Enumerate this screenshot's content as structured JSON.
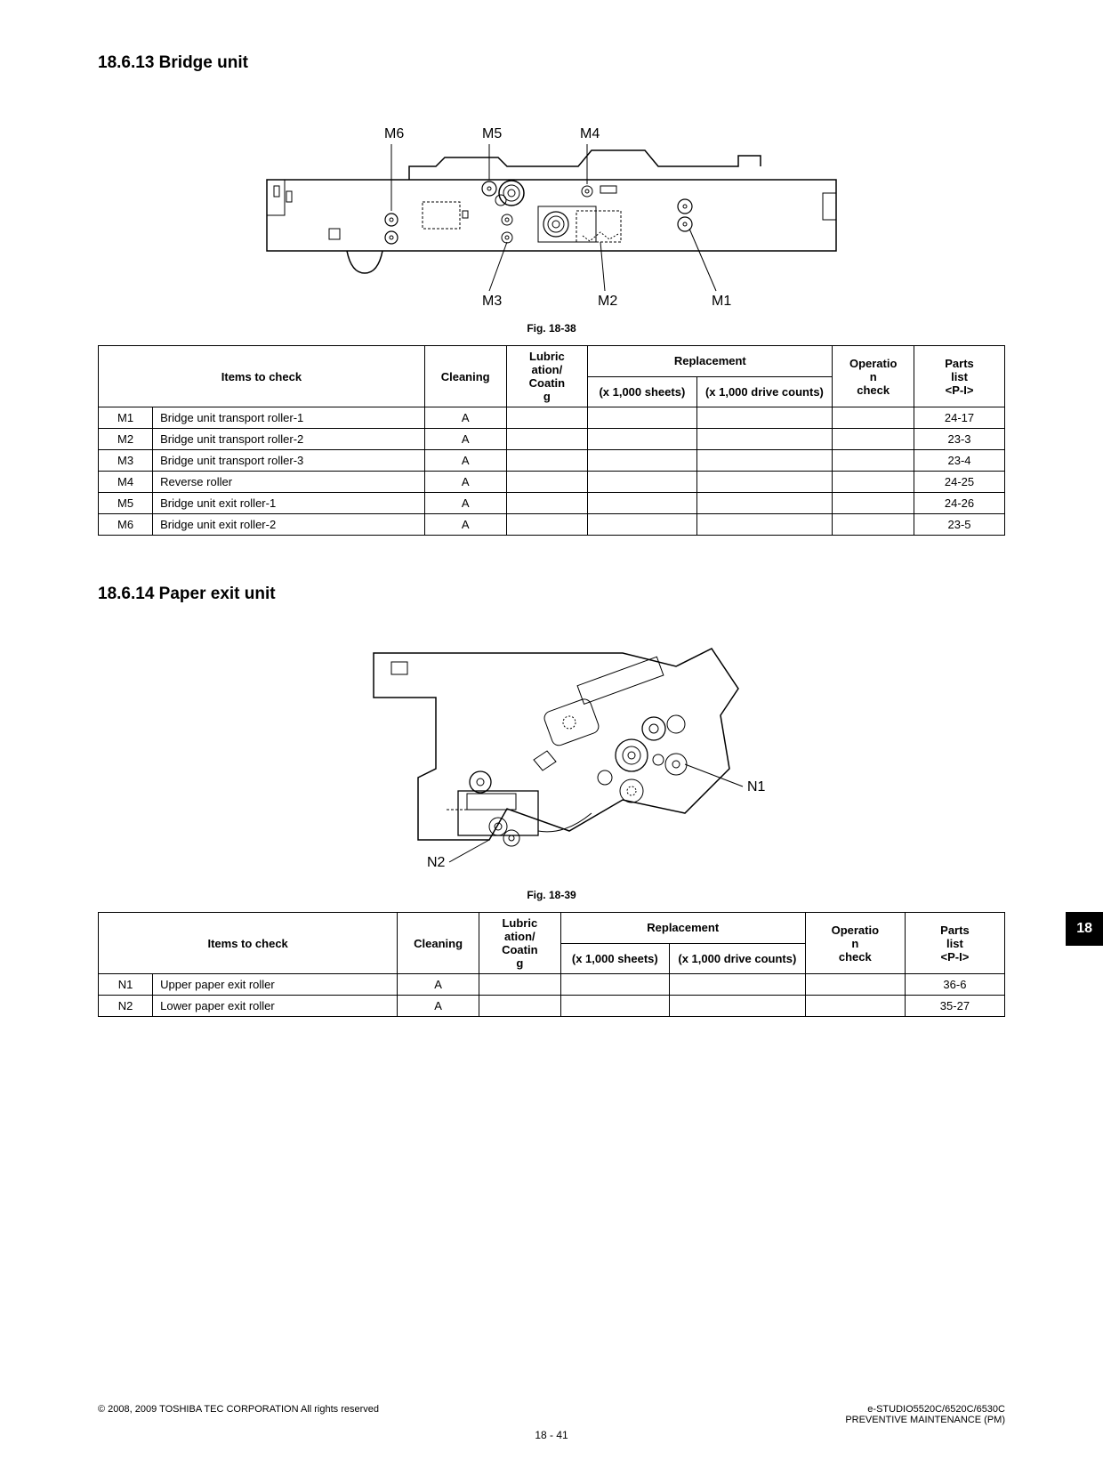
{
  "section1": {
    "heading": "18.6.13  Bridge unit",
    "figure_caption": "Fig. 18-38",
    "diagram": {
      "labels": [
        "M6",
        "M5",
        "M4",
        "M3",
        "M2",
        "M1"
      ]
    },
    "table": {
      "headers": {
        "items": "Items to check",
        "cleaning": "Cleaning",
        "lubric": "Lubrication/Coating",
        "replacement": "Replacement",
        "rep_sheets": "(x 1,000 sheets)",
        "rep_drive": "(x 1,000 drive counts)",
        "operation": "Operation check",
        "parts": "Parts list <P-I>"
      },
      "rows": [
        {
          "id": "M1",
          "item": "Bridge unit transport roller-1",
          "cleaning": "A",
          "lubric": "",
          "rep_sheets": "",
          "rep_drive": "",
          "op": "",
          "parts": "24-17"
        },
        {
          "id": "M2",
          "item": "Bridge unit transport roller-2",
          "cleaning": "A",
          "lubric": "",
          "rep_sheets": "",
          "rep_drive": "",
          "op": "",
          "parts": "23-3"
        },
        {
          "id": "M3",
          "item": "Bridge unit transport roller-3",
          "cleaning": "A",
          "lubric": "",
          "rep_sheets": "",
          "rep_drive": "",
          "op": "",
          "parts": "23-4"
        },
        {
          "id": "M4",
          "item": "Reverse roller",
          "cleaning": "A",
          "lubric": "",
          "rep_sheets": "",
          "rep_drive": "",
          "op": "",
          "parts": "24-25"
        },
        {
          "id": "M5",
          "item": "Bridge unit exit roller-1",
          "cleaning": "A",
          "lubric": "",
          "rep_sheets": "",
          "rep_drive": "",
          "op": "",
          "parts": "24-26"
        },
        {
          "id": "M6",
          "item": "Bridge unit exit roller-2",
          "cleaning": "A",
          "lubric": "",
          "rep_sheets": "",
          "rep_drive": "",
          "op": "",
          "parts": "23-5"
        }
      ]
    }
  },
  "section2": {
    "heading": "18.6.14  Paper exit unit",
    "figure_caption": "Fig. 18-39",
    "diagram": {
      "labels": [
        "N1",
        "N2"
      ]
    },
    "table": {
      "headers": {
        "items": "Items to check",
        "cleaning": "Cleaning",
        "lubric": "Lubrication/Coating",
        "replacement": "Replacement",
        "rep_sheets": "(x 1,000 sheets)",
        "rep_drive": "(x 1,000 drive counts)",
        "operation": "Operation check",
        "parts": "Parts list <P-I>"
      },
      "rows": [
        {
          "id": "N1",
          "item": "Upper paper exit roller",
          "cleaning": "A",
          "lubric": "",
          "rep_sheets": "",
          "rep_drive": "",
          "op": "",
          "parts": "36-6"
        },
        {
          "id": "N2",
          "item": "Lower paper exit roller",
          "cleaning": "A",
          "lubric": "",
          "rep_sheets": "",
          "rep_drive": "",
          "op": "",
          "parts": "35-27"
        }
      ]
    }
  },
  "footer": {
    "copyright": "© 2008, 2009 TOSHIBA TEC CORPORATION All rights reserved",
    "model": "e-STUDIO5520C/6520C/6530C",
    "doc": "PREVENTIVE MAINTENANCE (PM)",
    "page": "18 - 41"
  },
  "tab": "18",
  "styling": {
    "text_color": "#000000",
    "background_color": "#ffffff",
    "border_color": "#000000",
    "heading_fontsize": 19,
    "body_fontsize": 13,
    "caption_fontsize": 12,
    "footer_fontsize": 11,
    "tab_bg": "#000000",
    "tab_fg": "#ffffff",
    "col_widths_t1": [
      "6%",
      "30%",
      "9%",
      "9%",
      "12%",
      "15%",
      "9%",
      "10%"
    ],
    "col_widths_t2": [
      "6%",
      "27%",
      "9%",
      "9%",
      "12%",
      "15%",
      "11%",
      "11%"
    ]
  }
}
